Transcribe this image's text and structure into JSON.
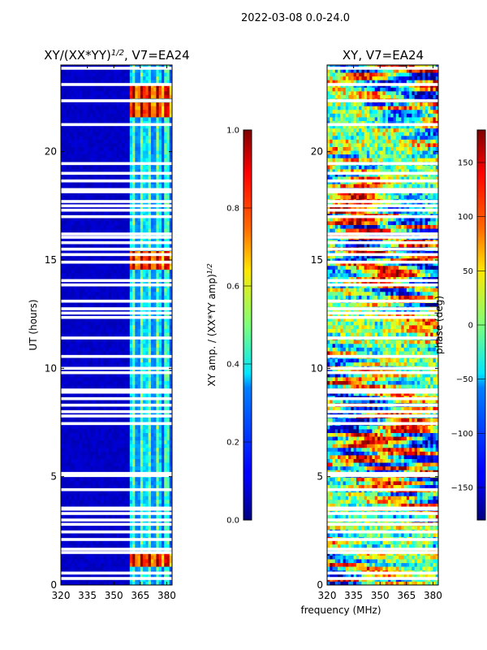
{
  "figure_title": "2022-03-08 0.0-24.0",
  "xlabel_shared": "frequency (MHz)",
  "chart_data": [
    {
      "type": "heatmap",
      "title_main": "XY/(XX*YY)",
      "title_sup": "1/2",
      "title_tail": ", V7=EA24",
      "xlabel": "",
      "ylabel": "UT (hours)",
      "xlim": [
        320,
        383
      ],
      "ylim": [
        0,
        24
      ],
      "xticks": [
        320,
        335,
        350,
        365,
        380
      ],
      "yticks": [
        0,
        5,
        10,
        15,
        20
      ],
      "colorbar": {
        "label_main": "XY amp. / (XX*YY amp)",
        "label_sup": "1/2",
        "range": [
          0.0,
          1.0
        ],
        "ticks": [
          "0.0",
          "0.2",
          "0.4",
          "0.6",
          "0.8",
          "1.0"
        ],
        "tick_values": [
          0.0,
          0.2,
          0.4,
          0.6,
          0.8,
          1.0
        ]
      },
      "colormap": "jet",
      "description_values": {
        "background_value": 0.05,
        "bright_channels_MHz": [
          361,
          366,
          370,
          375,
          380
        ],
        "peak_hours": [
          1.2,
          15.0,
          22.0,
          22.8
        ]
      }
    },
    {
      "type": "heatmap",
      "title_main": "XY, V7=EA24",
      "title_sup": "",
      "title_tail": "",
      "xlabel": "frequency (MHz)",
      "ylabel": "",
      "xlim": [
        320,
        383
      ],
      "ylim": [
        0,
        24
      ],
      "xticks": [
        320,
        335,
        350,
        365,
        380
      ],
      "yticks": [
        0,
        5,
        10,
        15,
        20
      ],
      "colorbar": {
        "label_main": "phase (deg)",
        "label_sup": "",
        "range": [
          -180,
          180
        ],
        "ticks": [
          "−150",
          "−100",
          "−50",
          "0",
          "50",
          "100",
          "150"
        ],
        "tick_values": [
          -150,
          -100,
          -50,
          0,
          50,
          100,
          150
        ]
      },
      "colormap": "jet",
      "description_values": {
        "phase_range_deg": [
          -180,
          180
        ]
      }
    }
  ],
  "flagged_hours": [
    0.3,
    0.55,
    1.5,
    1.65,
    2.1,
    2.45,
    2.8,
    3.0,
    3.3,
    3.5,
    3.55,
    4.4,
    5.05,
    5.15,
    7.45,
    7.8,
    8.0,
    8.3,
    8.6,
    8.9,
    9.0,
    9.8,
    10.0,
    10.55,
    11.4,
    12.35,
    12.55,
    12.75,
    13.1,
    13.85,
    14.05,
    14.9,
    15.25,
    15.5,
    15.8,
    16.05,
    16.2,
    17.0,
    17.3,
    17.5,
    17.7,
    18.15,
    18.25,
    18.65,
    19.0,
    19.45,
    21.25,
    22.35,
    23.1,
    23.85
  ]
}
